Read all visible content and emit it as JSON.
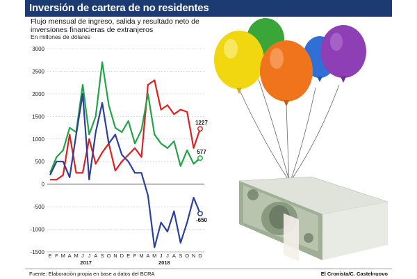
{
  "header": {
    "title": "Inversión de cartera de no residentes"
  },
  "subtitle": "Flujo mensual de ingreso, salida y resultado neto de inversiones financieras de extranjeros",
  "units": "En millones de dólares",
  "footer": {
    "source": "Fuente: Elaboración propia en base a datos del BCRA",
    "credit": "El Cronista/C. Castelnuovo"
  },
  "chart_data": {
    "type": "line",
    "ylim": [
      -1500,
      3000
    ],
    "yticks": [
      -1500,
      -1000,
      -500,
      0,
      500,
      1000,
      1500,
      2000,
      2500,
      3000
    ],
    "categories": [
      "E",
      "F",
      "M",
      "A",
      "M",
      "J",
      "J",
      "A",
      "S",
      "O",
      "N",
      "D",
      "E",
      "F",
      "M",
      "A",
      "M",
      "J",
      "J",
      "A",
      "S",
      "O",
      "N",
      "D"
    ],
    "year_labels": [
      "2017",
      "2018"
    ],
    "series": [
      {
        "color": "#e02020",
        "end_label": "1227",
        "values": [
          100,
          100,
          200,
          1100,
          250,
          250,
          1000,
          450,
          700,
          900,
          300,
          500,
          650,
          800,
          600,
          2200,
          2300,
          1650,
          1750,
          1550,
          1650,
          1600,
          800,
          1227
        ]
      },
      {
        "color": "#22a446",
        "end_label": "577",
        "values": [
          250,
          600,
          750,
          1250,
          1150,
          2200,
          1100,
          1500,
          2700,
          1750,
          1250,
          1150,
          1400,
          900,
          1200,
          2000,
          1100,
          900,
          800,
          950,
          400,
          750,
          450,
          577
        ]
      },
      {
        "color": "#2a3f9e",
        "end_label": "-650",
        "values": [
          200,
          500,
          500,
          150,
          1100,
          2000,
          100,
          1150,
          1800,
          900,
          1100,
          650,
          500,
          250,
          250,
          -250,
          -1400,
          -850,
          -1050,
          -600,
          -1300,
          -850,
          -300,
          -650
        ]
      }
    ]
  },
  "illustration": {
    "subject": "balloons lifting a stack of dollar bills"
  }
}
